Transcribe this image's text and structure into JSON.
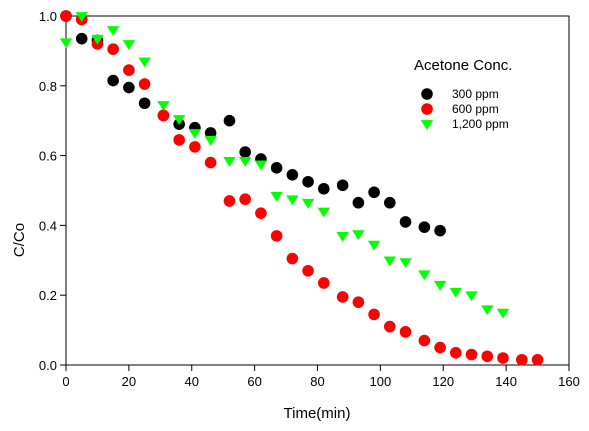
{
  "chart_data": {
    "type": "scatter",
    "xlabel": "Time(min)",
    "ylabel": "C/Co",
    "xlim": [
      0,
      160
    ],
    "ylim": [
      0,
      1.0
    ],
    "xticks": [
      "0",
      "20",
      "40",
      "60",
      "80",
      "100",
      "120",
      "140",
      "160"
    ],
    "yticks": [
      "0.0",
      "0.2",
      "0.4",
      "0.6",
      "0.8",
      "1.0"
    ],
    "grid": false,
    "legend": {
      "title": "Acetone Conc.",
      "position": "top-right"
    },
    "series": [
      {
        "name": "300 ppm",
        "marker": "circle",
        "color": "#000000",
        "points": [
          [
            0,
            1.0
          ],
          [
            5,
            0.935
          ],
          [
            10,
            0.93
          ],
          [
            15,
            0.815
          ],
          [
            20,
            0.795
          ],
          [
            25,
            0.75
          ],
          [
            31,
            0.715
          ],
          [
            36,
            0.69
          ],
          [
            41,
            0.68
          ],
          [
            46,
            0.665
          ],
          [
            52,
            0.7
          ],
          [
            57,
            0.61
          ],
          [
            62,
            0.59
          ],
          [
            67,
            0.565
          ],
          [
            72,
            0.545
          ],
          [
            77,
            0.525
          ],
          [
            82,
            0.505
          ],
          [
            88,
            0.515
          ],
          [
            93,
            0.465
          ],
          [
            98,
            0.495
          ],
          [
            103,
            0.465
          ],
          [
            108,
            0.41
          ],
          [
            114,
            0.395
          ],
          [
            119,
            0.385
          ]
        ]
      },
      {
        "name": "600 ppm",
        "marker": "circle",
        "color": "#ff0000",
        "points": [
          [
            0,
            1.0
          ],
          [
            5,
            0.99
          ],
          [
            10,
            0.92
          ],
          [
            15,
            0.905
          ],
          [
            20,
            0.845
          ],
          [
            25,
            0.805
          ],
          [
            31,
            0.715
          ],
          [
            36,
            0.645
          ],
          [
            41,
            0.625
          ],
          [
            46,
            0.58
          ],
          [
            52,
            0.47
          ],
          [
            57,
            0.475
          ],
          [
            62,
            0.435
          ],
          [
            67,
            0.37
          ],
          [
            72,
            0.305
          ],
          [
            77,
            0.27
          ],
          [
            82,
            0.235
          ],
          [
            88,
            0.195
          ],
          [
            93,
            0.18
          ],
          [
            98,
            0.145
          ],
          [
            103,
            0.11
          ],
          [
            108,
            0.095
          ],
          [
            114,
            0.07
          ],
          [
            119,
            0.05
          ],
          [
            124,
            0.035
          ],
          [
            129,
            0.03
          ],
          [
            134,
            0.025
          ],
          [
            139,
            0.02
          ],
          [
            145,
            0.015
          ],
          [
            150,
            0.015
          ]
        ]
      },
      {
        "name": "1,200 ppm",
        "marker": "triangle-down",
        "color": "#00ff00",
        "points": [
          [
            0,
            0.925
          ],
          [
            5,
            1.0
          ],
          [
            10,
            0.935
          ],
          [
            15,
            0.96
          ],
          [
            20,
            0.92
          ],
          [
            25,
            0.87
          ],
          [
            31,
            0.745
          ],
          [
            36,
            0.705
          ],
          [
            41,
            0.665
          ],
          [
            46,
            0.645
          ],
          [
            52,
            0.585
          ],
          [
            57,
            0.585
          ],
          [
            62,
            0.575
          ],
          [
            67,
            0.485
          ],
          [
            72,
            0.475
          ],
          [
            77,
            0.465
          ],
          [
            82,
            0.44
          ],
          [
            88,
            0.37
          ],
          [
            93,
            0.375
          ],
          [
            98,
            0.345
          ],
          [
            103,
            0.3
          ],
          [
            108,
            0.295
          ],
          [
            114,
            0.26
          ],
          [
            119,
            0.23
          ],
          [
            124,
            0.21
          ],
          [
            129,
            0.2
          ],
          [
            134,
            0.16
          ],
          [
            139,
            0.15
          ]
        ]
      }
    ]
  }
}
